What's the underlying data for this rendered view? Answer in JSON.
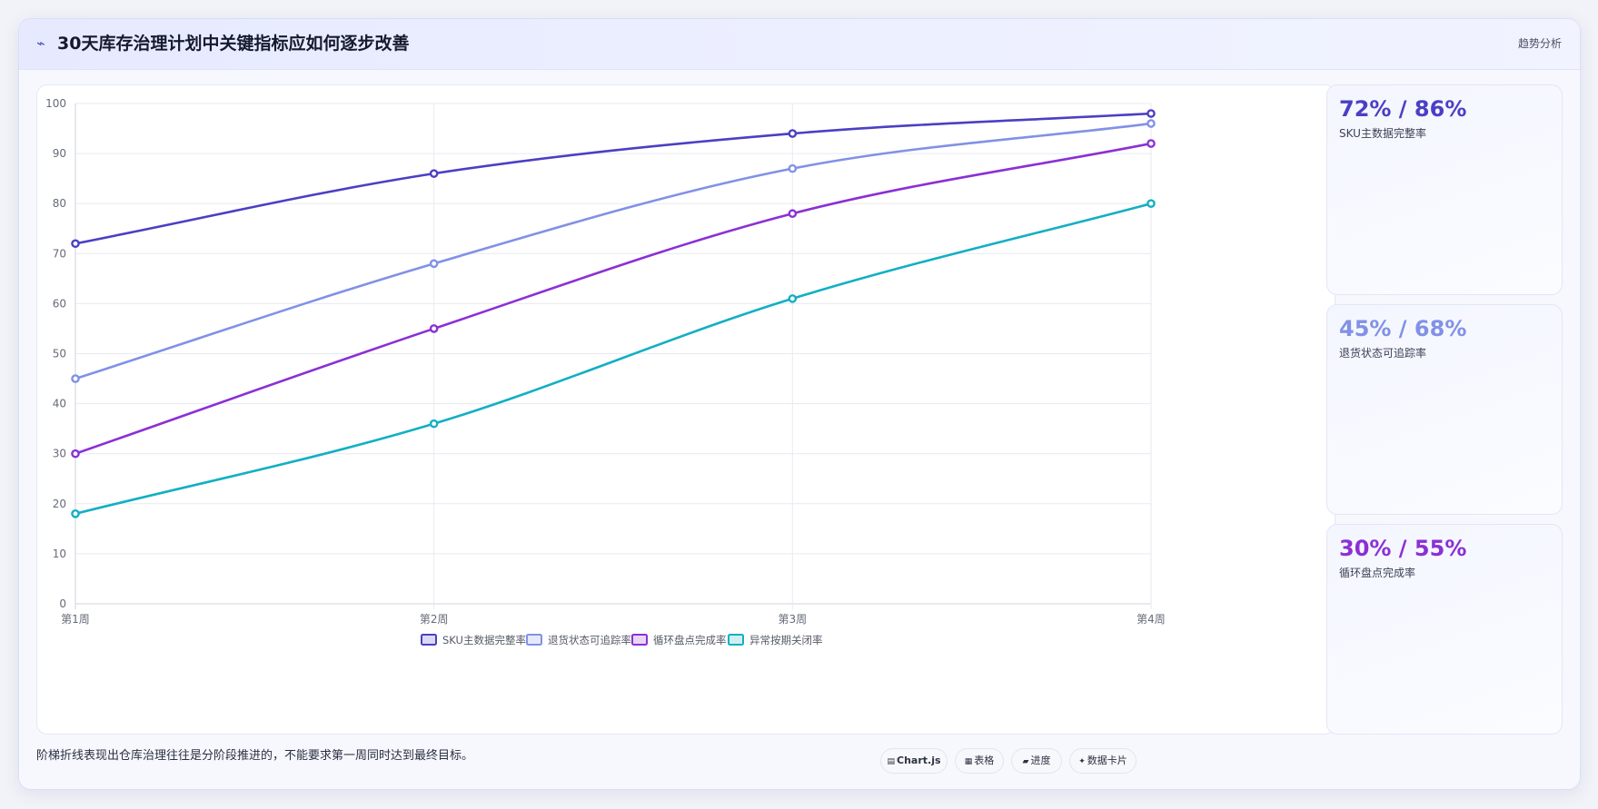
{
  "header": {
    "title_icon": "trend-icon",
    "title": "30天库存治理计划中关键指标应如何逐步改善",
    "tag": "趋势分析"
  },
  "chart_data": {
    "type": "line",
    "categories": [
      "第1周",
      "第2周",
      "第3周",
      "第4周"
    ],
    "ylim": [
      0,
      100
    ],
    "yticks": [
      0,
      10,
      20,
      30,
      40,
      50,
      60,
      70,
      80,
      90,
      100
    ],
    "grid": true,
    "legend_position": "bottom",
    "series": [
      {
        "name": "SKU主数据完整率",
        "color": "#4b3fc4",
        "values": [
          72,
          86,
          94,
          98
        ]
      },
      {
        "name": "退货状态可追踪率",
        "color": "#8191e6",
        "values": [
          45,
          68,
          87,
          96
        ]
      },
      {
        "name": "循环盘点完成率",
        "color": "#8b30d4",
        "values": [
          30,
          55,
          78,
          92
        ]
      },
      {
        "name": "异常按期关闭率",
        "color": "#13afc3",
        "values": [
          18,
          36,
          61,
          80
        ]
      }
    ]
  },
  "kpis": [
    {
      "value": "72% / 86%",
      "label": "SKU主数据完整率",
      "color": "#4b3fc4"
    },
    {
      "value": "45% / 68%",
      "label": "退货状态可追踪率",
      "color": "#8191e6"
    },
    {
      "value": "30% / 55%",
      "label": "循环盘点完成率",
      "color": "#8b30d4"
    }
  ],
  "footer": {
    "note": "阶梯折线表现出仓库治理往往是分阶段推进的，不能要求第一周同时达到最终目标。",
    "chips": [
      {
        "icon": "chart-icon",
        "glyph": "▤",
        "label": "Chart.js",
        "bold": true
      },
      {
        "icon": "table-icon",
        "glyph": "▦",
        "label": "表格",
        "bold": false
      },
      {
        "icon": "progress-icon",
        "glyph": "▰",
        "label": "进度",
        "bold": false
      },
      {
        "icon": "card-icon",
        "glyph": "✦",
        "label": "数据卡片",
        "bold": false
      }
    ]
  }
}
